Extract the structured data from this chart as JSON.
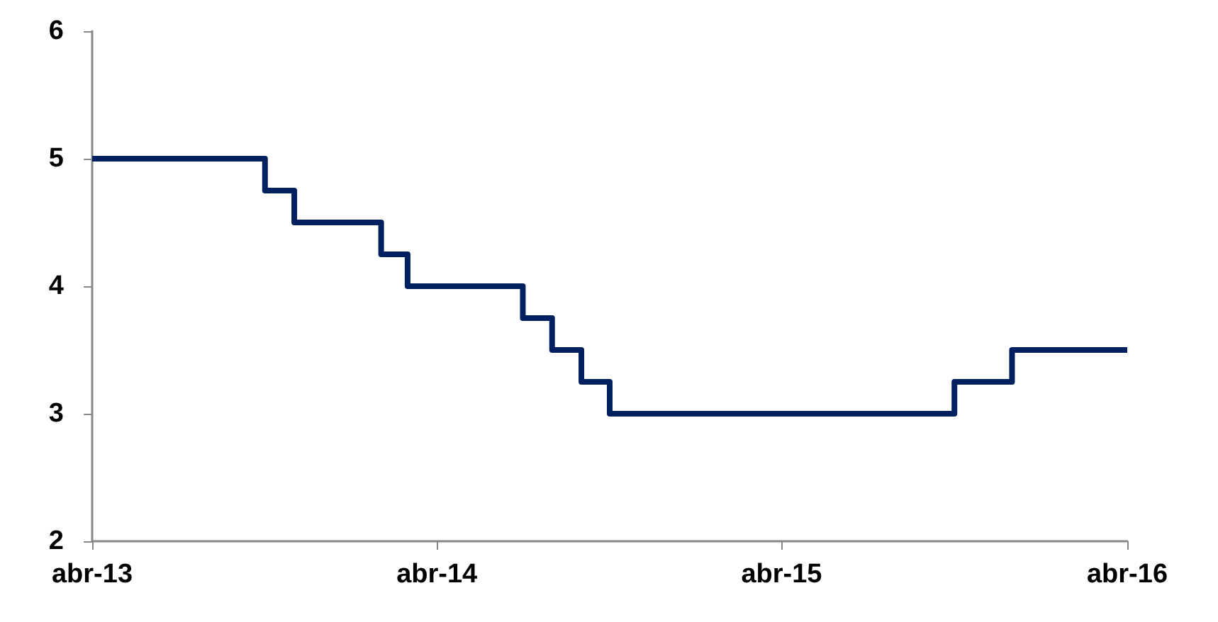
{
  "chart_data": {
    "type": "step",
    "x": [
      "2013-04",
      "2013-10",
      "2013-11",
      "2014-02",
      "2014-03",
      "2014-07",
      "2014-08",
      "2014-09",
      "2014-10",
      "2015-10",
      "2015-12",
      "2016-04"
    ],
    "series": [
      {
        "color": "#002060",
        "values": [
          5,
          4.75,
          4.5,
          4.25,
          4,
          3.75,
          3.5,
          3.25,
          3,
          3.25,
          3.5,
          3.5
        ]
      }
    ],
    "xlim": [
      "2013-04",
      "2016-04"
    ],
    "xticks": [
      {
        "value": "2013-04",
        "label": "abr-13"
      },
      {
        "value": "2014-04",
        "label": "abr-14"
      },
      {
        "value": "2015-04",
        "label": "abr-15"
      },
      {
        "value": "2016-04",
        "label": "abr-16"
      }
    ],
    "ylim": [
      2,
      6
    ],
    "yticks": [
      2,
      3,
      4,
      5,
      6
    ],
    "grid": false,
    "marker": "none",
    "line_style": "solid"
  }
}
